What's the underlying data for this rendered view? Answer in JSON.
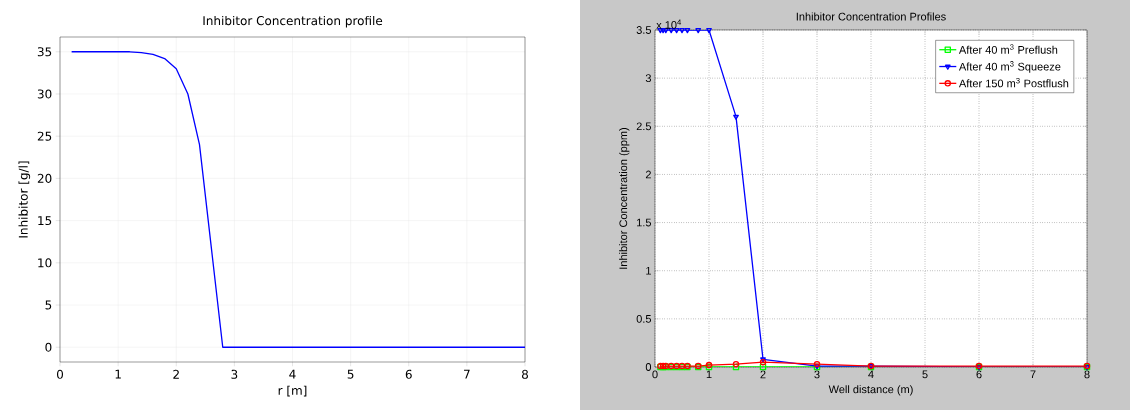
{
  "chart_data": [
    {
      "type": "line",
      "title": "Inhibitor Concentration profile",
      "xlabel": "r [m]",
      "ylabel": "Inhibitor [g/l]",
      "xlim": [
        0,
        8
      ],
      "ylim": [
        -1.75,
        36.75
      ],
      "xticks": [
        0,
        1,
        2,
        3,
        4,
        5,
        6,
        7,
        8
      ],
      "yticks": [
        0,
        5,
        10,
        15,
        20,
        25,
        30,
        35
      ],
      "grid": true,
      "marker": "none",
      "series": [
        {
          "color": "#0000ff",
          "x": [
            0.2,
            0.6,
            1.0,
            1.2,
            1.4,
            1.6,
            1.8,
            2.0,
            2.2,
            2.4,
            2.6,
            2.8,
            3.0,
            4.0,
            5.0,
            6.0,
            7.0,
            8.0
          ],
          "values": [
            35,
            35,
            35,
            35,
            34.9,
            34.7,
            34.2,
            33,
            30,
            24,
            12,
            0,
            0,
            0,
            0,
            0,
            0,
            0
          ]
        }
      ]
    },
    {
      "type": "line",
      "title": "Inhibitor Concentration Profiles",
      "xlabel": "Well distance (m)",
      "ylabel": "Inhibitor Concentration (ppm)",
      "annotations": [
        "x 10$^{4}$"
      ],
      "xlim": [
        0,
        8
      ],
      "ylim": [
        0,
        3.5
      ],
      "xticks": [
        0,
        1,
        2,
        3,
        4,
        5,
        6,
        7,
        8
      ],
      "yticks": [
        0,
        0.5,
        1,
        1.5,
        2,
        2.5,
        3,
        3.5
      ],
      "grid": true,
      "legend": "top right",
      "series": [
        {
          "name": "After 40 m$^{3}$ Preflush",
          "color": "#00ff00",
          "marker": "square",
          "x": [
            0.1,
            0.15,
            0.2,
            0.3,
            0.4,
            0.5,
            0.6,
            0.8,
            1.0,
            1.5,
            2,
            3,
            4,
            6,
            8
          ],
          "values": [
            0,
            0,
            0,
            0,
            0,
            0,
            0,
            0,
            0,
            0,
            0,
            0,
            0,
            0,
            0
          ]
        },
        {
          "name": "After 40 m$^{3}$ Squeeze",
          "color": "#0000ff",
          "marker": "triangle",
          "x": [
            0.1,
            0.15,
            0.2,
            0.3,
            0.4,
            0.5,
            0.6,
            0.8,
            1.0,
            1.5,
            2,
            3,
            4,
            6,
            8
          ],
          "values": [
            3.5,
            3.5,
            3.5,
            3.5,
            3.5,
            3.5,
            3.5,
            3.5,
            3.5,
            2.6,
            0.08,
            0.01,
            0.01,
            0,
            0
          ]
        },
        {
          "name": "After 150 m$^{3}$ Postflush",
          "color": "#ff0000",
          "marker": "circle",
          "x": [
            0.1,
            0.15,
            0.2,
            0.3,
            0.4,
            0.5,
            0.6,
            0.8,
            1.0,
            1.5,
            2,
            3,
            4,
            6,
            8
          ],
          "values": [
            0.01,
            0.01,
            0.01,
            0.01,
            0.01,
            0.01,
            0.01,
            0.01,
            0.02,
            0.03,
            0.05,
            0.03,
            0.01,
            0.01,
            0.01
          ]
        }
      ]
    }
  ]
}
